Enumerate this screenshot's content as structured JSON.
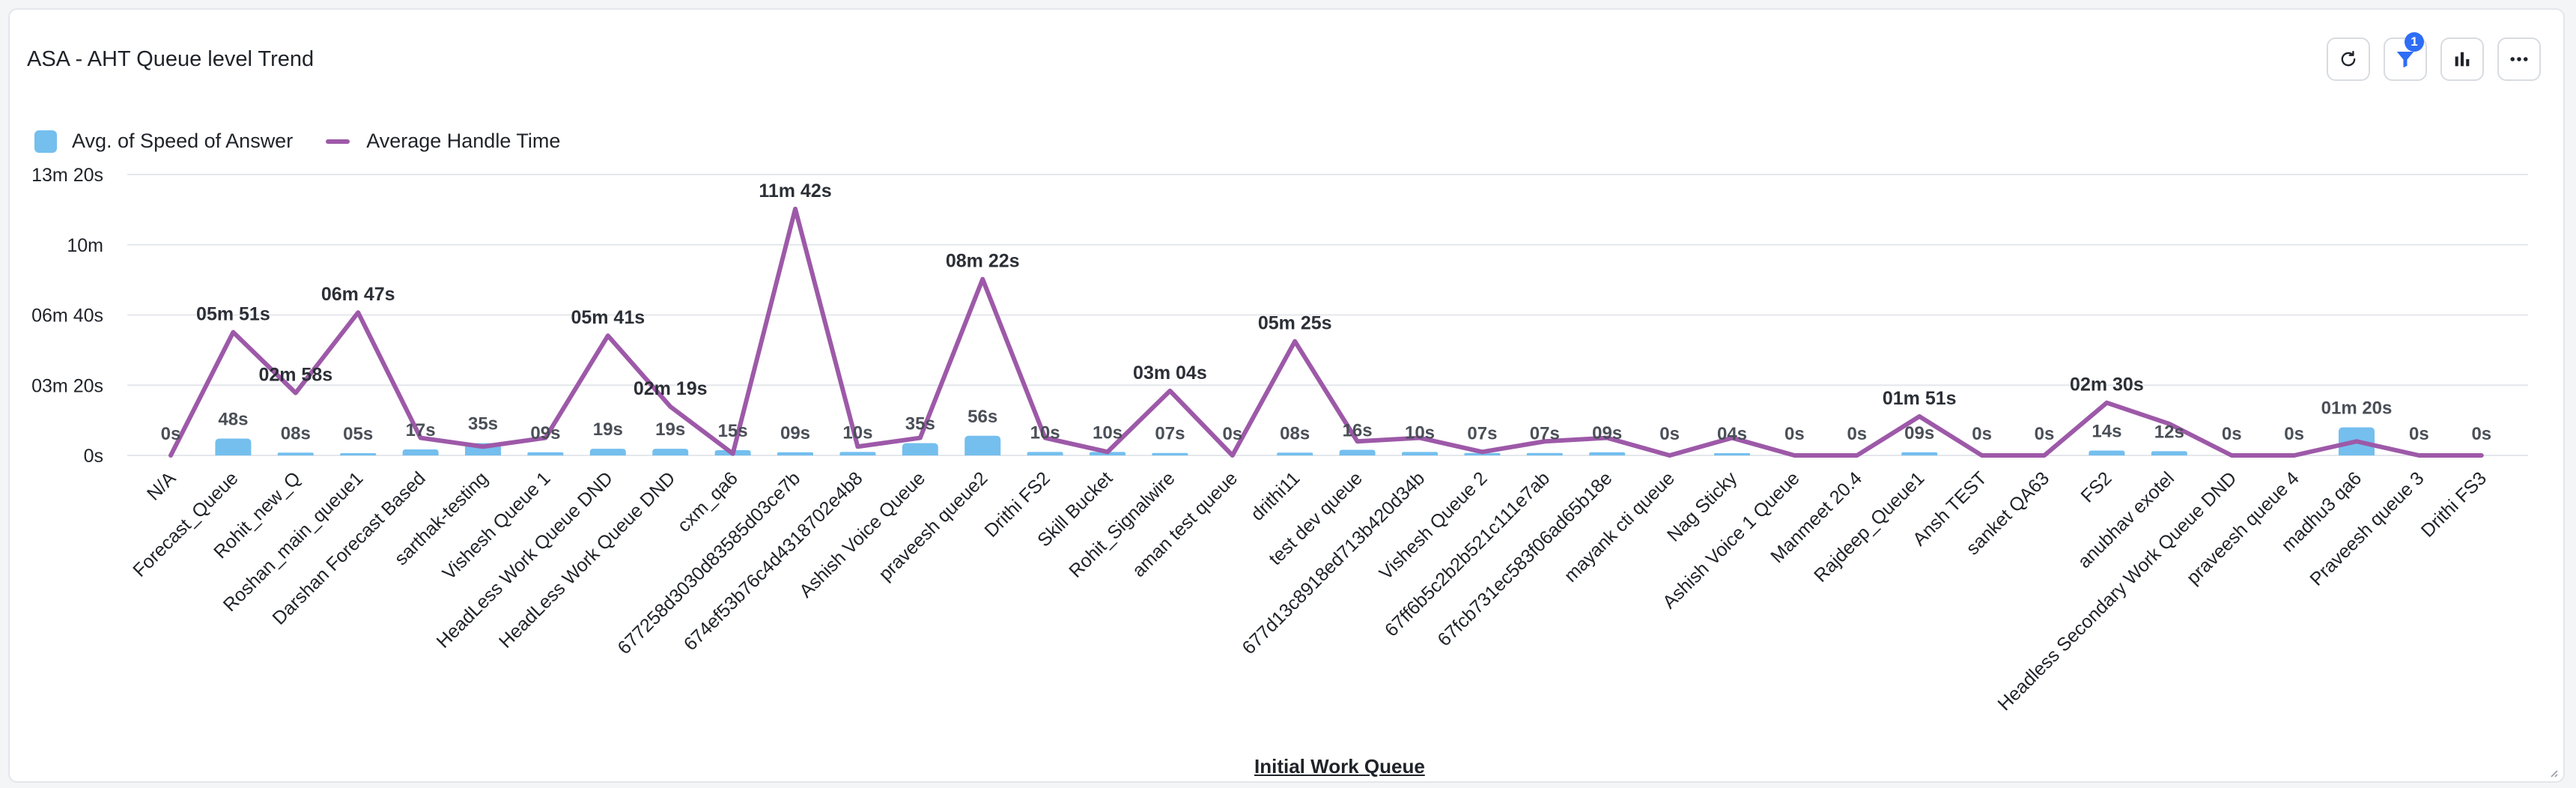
{
  "header": {
    "title": "ASA - AHT Queue level Trend"
  },
  "toolbar": {
    "filter_badge": "1",
    "icons": [
      "refresh-icon",
      "filter-icon",
      "bar-chart-icon",
      "more-icon"
    ]
  },
  "chart_data": {
    "type": "bar+line",
    "title": "ASA - AHT Queue level Trend",
    "xlabel": "Initial Work Queue",
    "ylabel": "",
    "ylim_seconds": [
      0,
      800
    ],
    "y_ticks": [
      {
        "value": 0,
        "label": "0s"
      },
      {
        "value": 200,
        "label": "03m 20s"
      },
      {
        "value": 400,
        "label": "06m 40s"
      },
      {
        "value": 600,
        "label": "10m"
      },
      {
        "value": 800,
        "label": "13m 20s"
      }
    ],
    "grid": true,
    "legend_position": "top-left",
    "colors": {
      "bar": "#74bfee",
      "line": "#9d59a8"
    },
    "series": [
      {
        "name": "Avg. of Speed of Answer",
        "type": "bar"
      },
      {
        "name": "Average Handle Time",
        "type": "line"
      }
    ],
    "categories": [
      "N/A",
      "Forecast_Queue",
      "Rohit_new_Q",
      "Roshan_main_queue1",
      "Darshan Forecast Based",
      "sarthak-testing",
      "Vishesh Queue 1",
      "HeadLess Work Queue DND",
      "HeadLess Work Queue DND",
      "cxm_qa6",
      "677258d3030d83585d03ce7b",
      "674ef53b76c4d4318702e4b8",
      "Ashish Voice Queue",
      "praveesh queue2",
      "Drithi FS2",
      "Skill Bucket",
      "Rohit_Signalwire",
      "aman test queue",
      "drithi11",
      "test dev queue",
      "677d13c8918ed713b420d34b",
      "Vishesh Queue 2",
      "67ff6b5c2b2b521c111e7ab",
      "67fcb731ec583f06ad65b18e",
      "mayank cti queue",
      "Nag Sticky",
      "Ashish Voice 1 Queue",
      "Manmeet 20.4",
      "Rajdeep_Queue1",
      "Ansh TEST",
      "sanket QA63",
      "FS2",
      "anubhav exotel",
      "Headless Secondary Work Queue DND",
      "praveesh queue 4",
      "madhu3 qa6",
      "Praveesh queue 3",
      "Drithi FS3"
    ],
    "asa_seconds": [
      0,
      48,
      8,
      5,
      17,
      35,
      9,
      19,
      19,
      15,
      9,
      10,
      35,
      56,
      10,
      10,
      7,
      0,
      8,
      16,
      10,
      7,
      7,
      9,
      0,
      4,
      0,
      0,
      9,
      0,
      0,
      14,
      12,
      0,
      0,
      80,
      0,
      0
    ],
    "asa_labels": [
      "0s",
      "48s",
      "08s",
      "05s",
      "17s",
      "35s",
      "09s",
      "19s",
      "19s",
      "15s",
      "09s",
      "10s",
      "35s",
      "56s",
      "10s",
      "10s",
      "07s",
      "0s",
      "08s",
      "16s",
      "10s",
      "07s",
      "07s",
      "09s",
      "0s",
      "04s",
      "0s",
      "0s",
      "09s",
      "0s",
      "0s",
      "14s",
      "12s",
      "0s",
      "0s",
      "01m 20s",
      "0s",
      "0s"
    ],
    "aht_seconds": [
      0,
      351,
      178,
      407,
      50,
      25,
      50,
      341,
      139,
      5,
      702,
      25,
      50,
      502,
      50,
      10,
      184,
      0,
      325,
      40,
      50,
      10,
      40,
      50,
      0,
      50,
      0,
      0,
      111,
      0,
      0,
      150,
      90,
      0,
      0,
      40,
      0,
      0
    ],
    "aht_labels": [
      "",
      "05m 51s",
      "02m 58s",
      "06m 47s",
      "",
      "",
      "",
      "05m 41s",
      "02m 19s",
      "",
      "11m 42s",
      "",
      "",
      "08m 22s",
      "",
      "",
      "03m 04s",
      "",
      "05m 25s",
      "",
      "",
      "",
      "",
      "",
      "",
      "",
      "",
      "",
      "01m 51s",
      "",
      "",
      "02m 30s",
      "",
      "",
      "",
      "",
      "",
      ""
    ]
  }
}
